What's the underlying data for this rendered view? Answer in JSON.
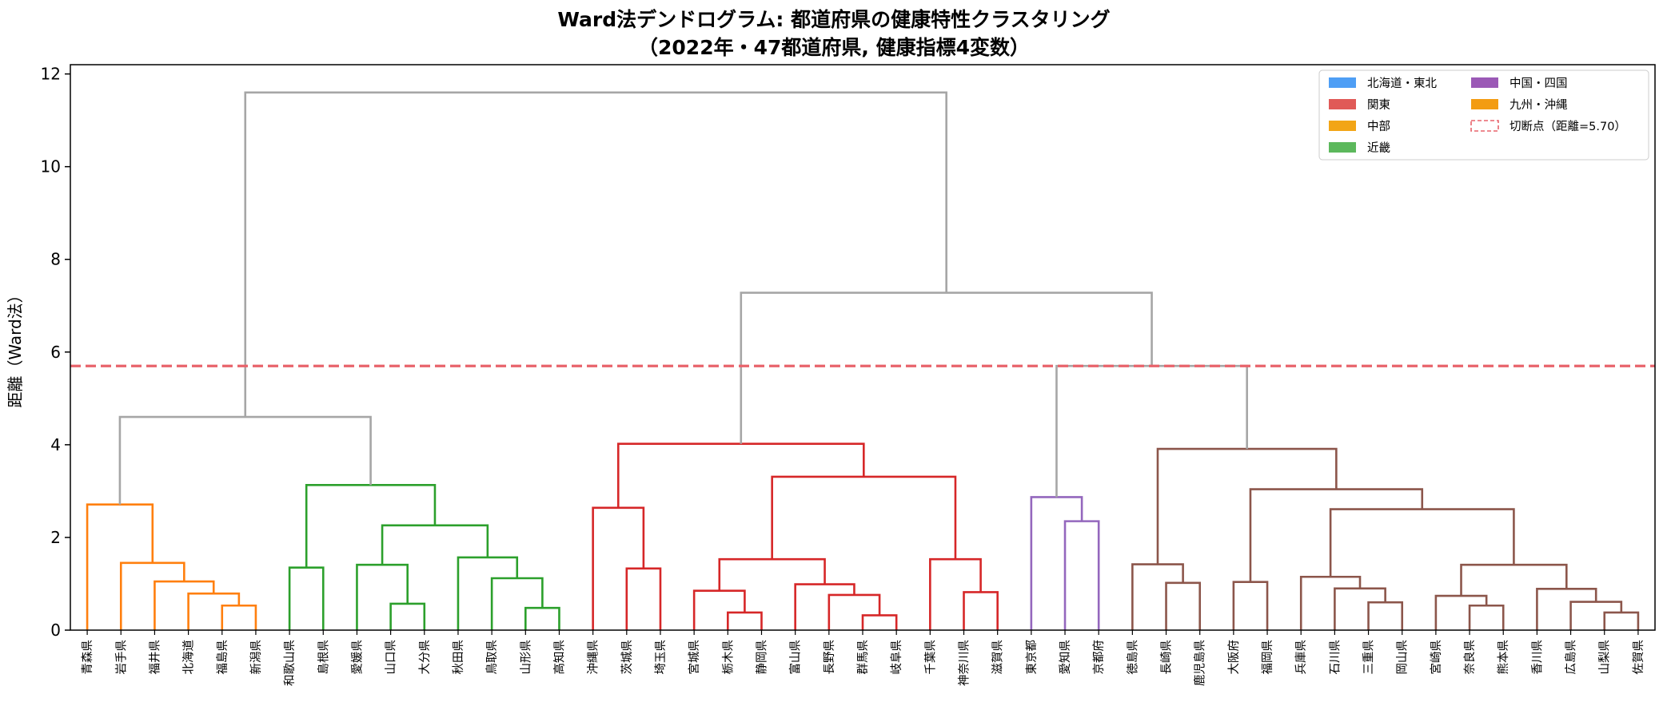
{
  "chart_data": {
    "type": "dendrogram",
    "title_line1": "Ward法デンドログラム: 都道府県の健康特性クラスタリング",
    "title_line2": "（2022年・47都道府県, 健康指標4変数）",
    "ylabel": "距離（Ward法）",
    "ylim": [
      0,
      12.2
    ],
    "yticks": [
      0,
      2,
      4,
      6,
      8,
      10,
      12
    ],
    "cut_height": 5.7,
    "colors": {
      "orange": "#ff7f0e",
      "green": "#2ca02c",
      "red": "#d62728",
      "purple": "#9467bd",
      "brown": "#8c564b",
      "gray": "#a6a6a6",
      "cut": "#e8636b"
    },
    "leaves": [
      "青森県",
      "岩手県",
      "福井県",
      "北海道",
      "福島県",
      "新潟県",
      "和歌山県",
      "島根県",
      "愛媛県",
      "山口県",
      "大分県",
      "秋田県",
      "鳥取県",
      "山形県",
      "高知県",
      "沖縄県",
      "茨城県",
      "埼玉県",
      "宮城県",
      "栃木県",
      "静岡県",
      "富山県",
      "長野県",
      "群馬県",
      "岐阜県",
      "千葉県",
      "神奈川県",
      "滋賀県",
      "東京都",
      "愛知県",
      "京都府",
      "徳島県",
      "長崎県",
      "鹿児島県",
      "大阪府",
      "福岡県",
      "兵庫県",
      "石川県",
      "三重県",
      "岡山県",
      "宮崎県",
      "奈良県",
      "熊本県",
      "香川県",
      "広島県",
      "山梨県",
      "佐賀県"
    ],
    "merges": [
      {
        "a": "L4",
        "b": "L5",
        "h": 0.53,
        "color": "orange"
      },
      {
        "a": "L3",
        "b": "M0",
        "h": 0.79,
        "color": "orange"
      },
      {
        "a": "L2",
        "b": "M1",
        "h": 1.05,
        "color": "orange"
      },
      {
        "a": "L1",
        "b": "M2",
        "h": 1.45,
        "color": "orange"
      },
      {
        "a": "L0",
        "b": "M3",
        "h": 2.71,
        "color": "orange"
      },
      {
        "a": "L6",
        "b": "L7",
        "h": 1.35,
        "color": "green"
      },
      {
        "a": "L9",
        "b": "L10",
        "h": 0.57,
        "color": "green"
      },
      {
        "a": "L8",
        "b": "M6",
        "h": 1.41,
        "color": "green"
      },
      {
        "a": "L13",
        "b": "L14",
        "h": 0.48,
        "color": "green"
      },
      {
        "a": "L12",
        "b": "M8",
        "h": 1.12,
        "color": "green"
      },
      {
        "a": "L11",
        "b": "M9",
        "h": 1.57,
        "color": "green"
      },
      {
        "a": "M7",
        "b": "M10",
        "h": 2.26,
        "color": "green"
      },
      {
        "a": "M5",
        "b": "M11",
        "h": 3.13,
        "color": "green"
      },
      {
        "a": "M4",
        "b": "M12",
        "h": 4.6,
        "color": "gray"
      },
      {
        "a": "L16",
        "b": "L17",
        "h": 1.33,
        "color": "red"
      },
      {
        "a": "L15",
        "b": "M14",
        "h": 2.64,
        "color": "red"
      },
      {
        "a": "L19",
        "b": "L20",
        "h": 0.38,
        "color": "red"
      },
      {
        "a": "L18",
        "b": "M16",
        "h": 0.85,
        "color": "red"
      },
      {
        "a": "L23",
        "b": "L24",
        "h": 0.32,
        "color": "red"
      },
      {
        "a": "L22",
        "b": "M18",
        "h": 0.76,
        "color": "red"
      },
      {
        "a": "L21",
        "b": "M19",
        "h": 0.99,
        "color": "red"
      },
      {
        "a": "M17",
        "b": "M20",
        "h": 1.53,
        "color": "red"
      },
      {
        "a": "L26",
        "b": "L27",
        "h": 0.82,
        "color": "red"
      },
      {
        "a": "L25",
        "b": "M22",
        "h": 1.53,
        "color": "red"
      },
      {
        "a": "M21",
        "b": "M23",
        "h": 3.31,
        "color": "red"
      },
      {
        "a": "M15",
        "b": "M24",
        "h": 4.02,
        "color": "red"
      },
      {
        "a": "L29",
        "b": "L30",
        "h": 2.35,
        "color": "purple"
      },
      {
        "a": "L28",
        "b": "M26",
        "h": 2.87,
        "color": "purple"
      },
      {
        "a": "L32",
        "b": "L33",
        "h": 1.02,
        "color": "brown"
      },
      {
        "a": "L31",
        "b": "M28",
        "h": 1.42,
        "color": "brown"
      },
      {
        "a": "L34",
        "b": "L35",
        "h": 1.04,
        "color": "brown"
      },
      {
        "a": "L38",
        "b": "L39",
        "h": 0.6,
        "color": "brown"
      },
      {
        "a": "L37",
        "b": "M31",
        "h": 0.9,
        "color": "brown"
      },
      {
        "a": "L36",
        "b": "M32",
        "h": 1.15,
        "color": "brown"
      },
      {
        "a": "L41",
        "b": "L42",
        "h": 0.53,
        "color": "brown"
      },
      {
        "a": "L40",
        "b": "M34",
        "h": 0.74,
        "color": "brown"
      },
      {
        "a": "L45",
        "b": "L46",
        "h": 0.38,
        "color": "brown"
      },
      {
        "a": "L44",
        "b": "M36",
        "h": 0.61,
        "color": "brown"
      },
      {
        "a": "L43",
        "b": "M37",
        "h": 0.89,
        "color": "brown"
      },
      {
        "a": "M35",
        "b": "M38",
        "h": 1.41,
        "color": "brown"
      },
      {
        "a": "M33",
        "b": "M39",
        "h": 2.61,
        "color": "brown"
      },
      {
        "a": "M30",
        "b": "M40",
        "h": 3.04,
        "color": "brown"
      },
      {
        "a": "M29",
        "b": "M41",
        "h": 3.91,
        "color": "brown"
      },
      {
        "a": "M27",
        "b": "M42",
        "h": 5.7,
        "color": "gray"
      },
      {
        "a": "M25",
        "b": "M43",
        "h": 7.28,
        "color": "gray"
      },
      {
        "a": "M13",
        "b": "M44",
        "h": 11.6,
        "color": "gray"
      }
    ],
    "legend": {
      "placement": "top-right",
      "entries": [
        {
          "label": "北海道・東北",
          "color": "#4e9ef5",
          "kind": "patch"
        },
        {
          "label": "関東",
          "color": "#e05a57",
          "kind": "patch"
        },
        {
          "label": "中部",
          "color": "#f2a516",
          "kind": "patch"
        },
        {
          "label": "近畿",
          "color": "#5cb85c",
          "kind": "patch"
        },
        {
          "label": "中国・四国",
          "color": "#9b59b6",
          "kind": "patch"
        },
        {
          "label": "九州・沖縄",
          "color": "#f39c12",
          "kind": "patch"
        },
        {
          "label": "切断点（距離=5.70）",
          "color": "#e8636b",
          "kind": "dashed"
        }
      ]
    }
  }
}
